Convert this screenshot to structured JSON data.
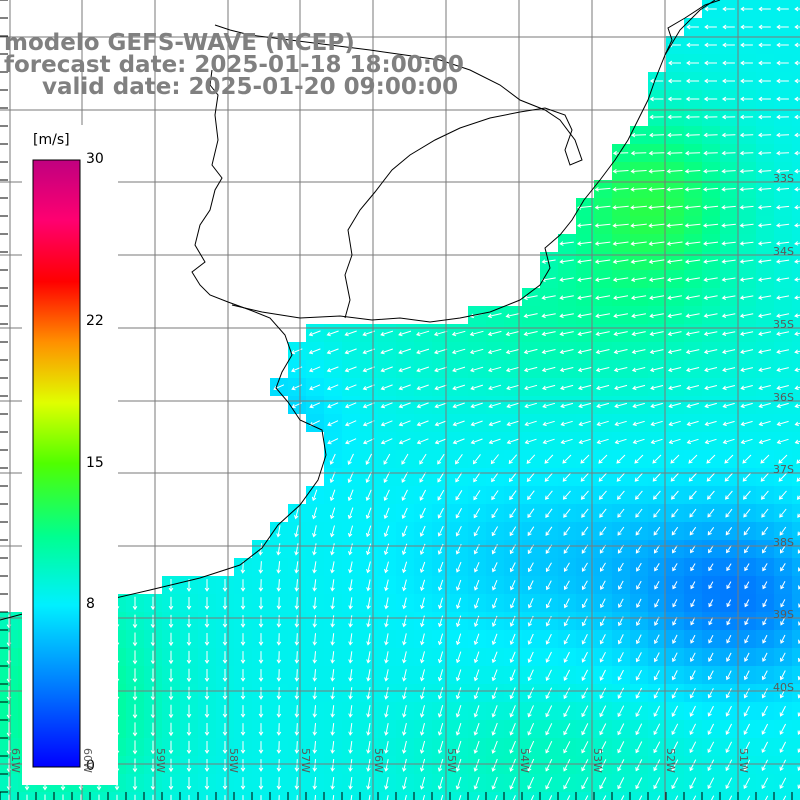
{
  "header": {
    "model": "modelo GEFS-WAVE (NCEP)",
    "forecast_date": "forecast date: 2025-01-18 18:00:00",
    "valid_date": "valid date: 2025-01-20 09:00:00"
  },
  "colorbar": {
    "unit": "[m/s]",
    "ticks": [
      "30",
      "22",
      "15",
      "8",
      "0"
    ],
    "range": [
      0,
      30
    ],
    "colors": [
      "#0000ff",
      "#0096ff",
      "#00e6ff",
      "#00ff80",
      "#80ff00",
      "#ffff00",
      "#ff8000",
      "#ff0000",
      "#ff0080",
      "#c00080"
    ]
  },
  "map": {
    "land_color": "#ffffff",
    "grid": true,
    "lat_labels": [
      "33S",
      "34S",
      "35S",
      "36S",
      "37S",
      "38S",
      "39S",
      "40S"
    ],
    "lon_labels": [
      "61W",
      "60W",
      "59W",
      "58W",
      "57W",
      "56W",
      "55W",
      "54W",
      "53W",
      "52W",
      "51W"
    ]
  }
}
